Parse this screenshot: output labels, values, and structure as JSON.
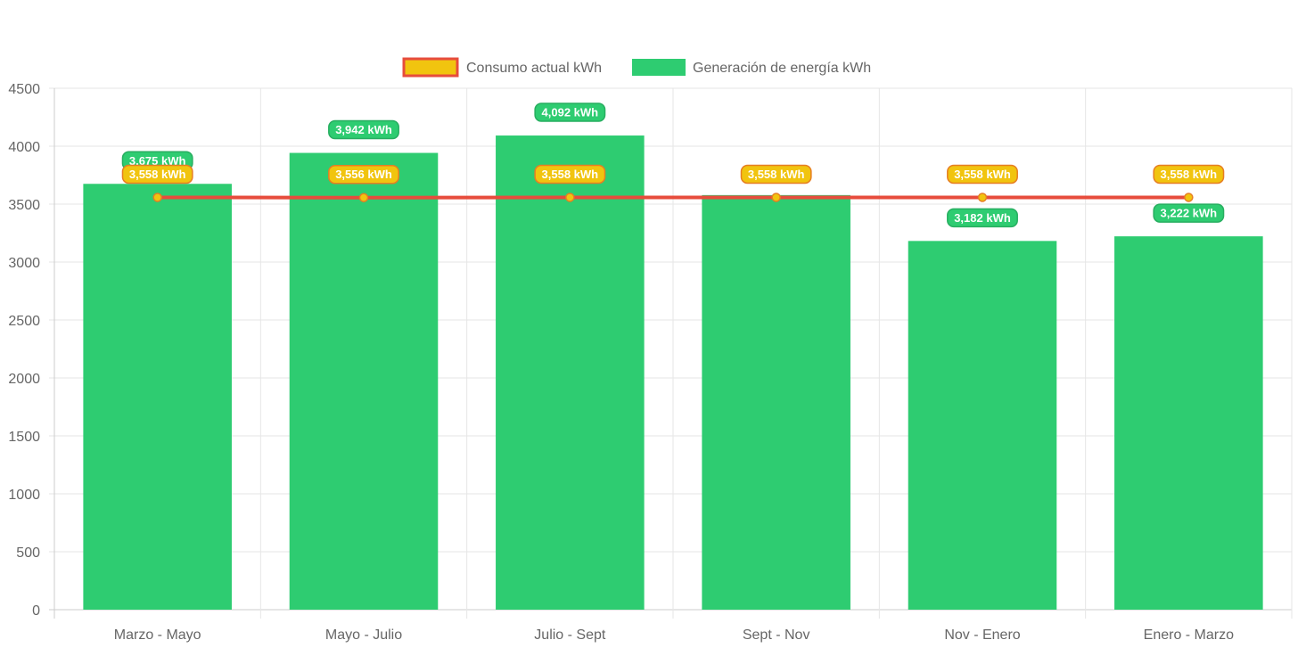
{
  "chart_data": {
    "type": "bar",
    "categories": [
      "Marzo - Mayo",
      "Mayo - Julio",
      "Julio - Sept",
      "Sept - Nov",
      "Nov - Enero",
      "Enero - Marzo"
    ],
    "series": [
      {
        "name": "Consumo actual kWh",
        "type": "line",
        "color": "#e74c3c",
        "point_color": "#f1c40f",
        "values": [
          3558,
          3556,
          3558,
          3558,
          3558,
          3558
        ],
        "labels": [
          "3,558 kWh",
          "3,556 kWh",
          "3,558 kWh",
          "3,558 kWh",
          "3,558 kWh",
          "3,558 kWh"
        ]
      },
      {
        "name": "Generación de energía kWh",
        "type": "bar",
        "color": "#2ecc71",
        "values": [
          3675,
          3942,
          4092,
          3578,
          3182,
          3222
        ],
        "labels": [
          "3,675 kWh",
          "3,942 kWh",
          "4,092 kWh",
          "",
          "3,182 kWh",
          "3,222 kWh"
        ]
      }
    ],
    "ylim": [
      0,
      4500
    ],
    "yticks": [
      "0",
      "500",
      "1000",
      "1500",
      "2000",
      "2500",
      "3000",
      "3500",
      "4000",
      "4500"
    ],
    "grid": true,
    "legend_position": "top-center"
  }
}
